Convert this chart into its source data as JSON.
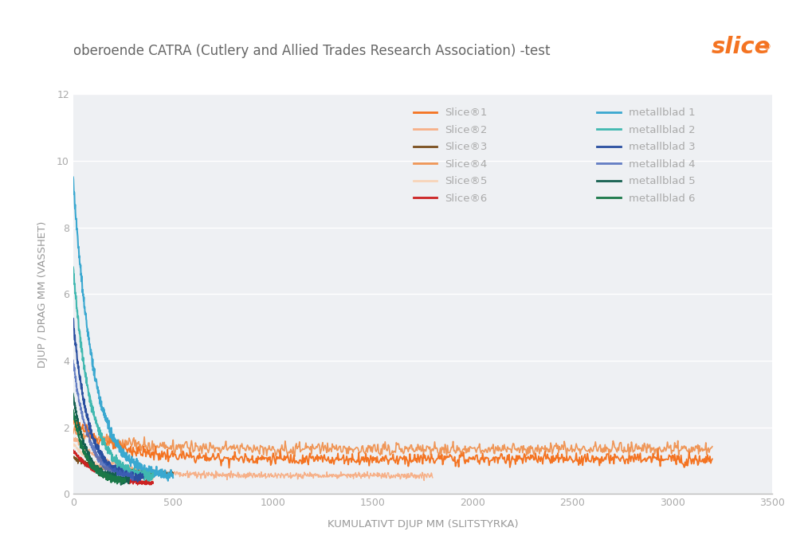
{
  "title": "oberoende CATRA (Cutlery and Allied Trades Research Association) -test",
  "xlabel": "KUMULATIVT DJUP MM (SLITSTYRKA)",
  "ylabel": "DJUP / DRAG MM (VASSHET)",
  "xlim": [
    0,
    3500
  ],
  "ylim": [
    0,
    12
  ],
  "yticks": [
    0,
    2,
    4,
    6,
    8,
    10,
    12
  ],
  "xticks": [
    0,
    500,
    1000,
    1500,
    2000,
    2500,
    3000,
    3500
  ],
  "bg_color": "#eef0f3",
  "outer_bg": "#ffffff",
  "title_color": "#666666",
  "axis_label_color": "#999999",
  "tick_color": "#aaaaaa",
  "legend_text_color": "#aaaaaa",
  "slice_colors": [
    "#f47321",
    "#f8a97c",
    "#7a4f1e",
    "#f08030",
    "#fbc9a0",
    "#cc2222"
  ],
  "metal_colors": [
    "#3aa8d0",
    "#40b8b0",
    "#2a4fa0",
    "#4060b8",
    "#156050",
    "#1a7848"
  ],
  "slice_labels": [
    "Slice®1",
    "Slice®2",
    "Slice®3",
    "Slice®4",
    "Slice®5",
    "Slice®6"
  ],
  "metal_labels": [
    "metallblad 1",
    "metallblad 2",
    "metallblad 3",
    "metallblad 4",
    "metallblad 5",
    "metallblad 6"
  ],
  "slice_logo_color": "#f47321"
}
